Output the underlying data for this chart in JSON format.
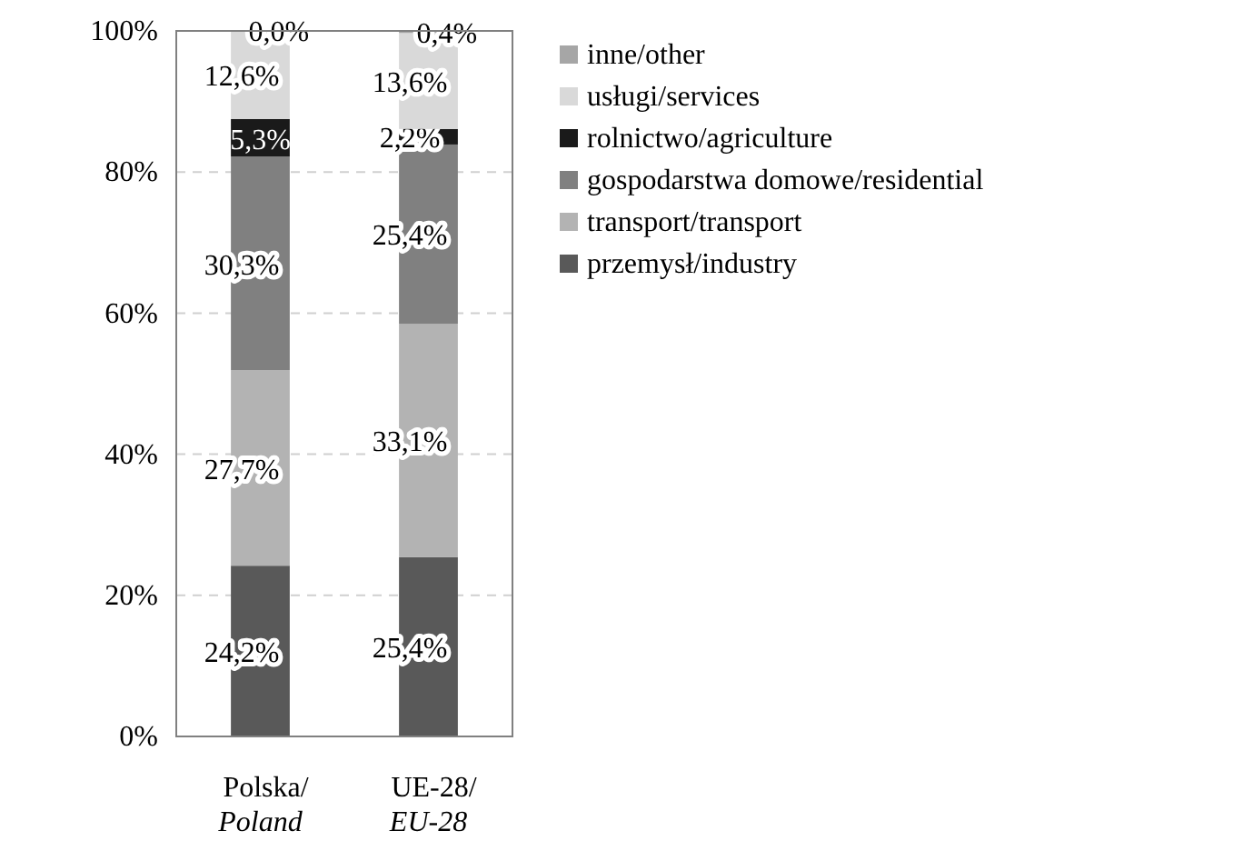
{
  "chart_data": {
    "type": "bar",
    "stacked": true,
    "categories": [
      "Polska/\nPoland",
      "UE-28/\nEU-28"
    ],
    "series": [
      {
        "name": "przemysł/industry",
        "color": "#595959",
        "values": [
          24.2,
          25.4
        ],
        "value_labels": [
          "24,2%",
          "25,4%"
        ]
      },
      {
        "name": "transport/transport",
        "color": "#b3b3b3",
        "values": [
          27.7,
          33.1
        ],
        "value_labels": [
          "27,7%",
          "33,1%"
        ]
      },
      {
        "name": "gospodarstwa domowe/residential",
        "color": "#808080",
        "values": [
          30.3,
          25.4
        ],
        "value_labels": [
          "30,3%",
          "25,4%"
        ]
      },
      {
        "name": "rolnictwo/agriculture",
        "color": "#1a1a1a",
        "values": [
          5.3,
          2.2
        ],
        "value_labels": [
          "5,3%",
          "2,2%"
        ]
      },
      {
        "name": "usługi/services",
        "color": "#d9d9d9",
        "values": [
          12.6,
          13.6
        ],
        "value_labels": [
          "12,6%",
          "13,6%"
        ]
      },
      {
        "name": "inne/other",
        "color": "#a6a6a6",
        "values": [
          0.0,
          0.4
        ],
        "value_labels": [
          "0,0%",
          "0,4%"
        ]
      }
    ],
    "ylim": [
      0,
      100
    ],
    "yticks": [
      {
        "value": 0,
        "label": "0%"
      },
      {
        "value": 20,
        "label": "20%"
      },
      {
        "value": 40,
        "label": "40%"
      },
      {
        "value": 60,
        "label": "60%"
      },
      {
        "value": 80,
        "label": "80%"
      },
      {
        "value": 100,
        "label": "100%"
      }
    ],
    "grid": "y",
    "legend": "right"
  }
}
